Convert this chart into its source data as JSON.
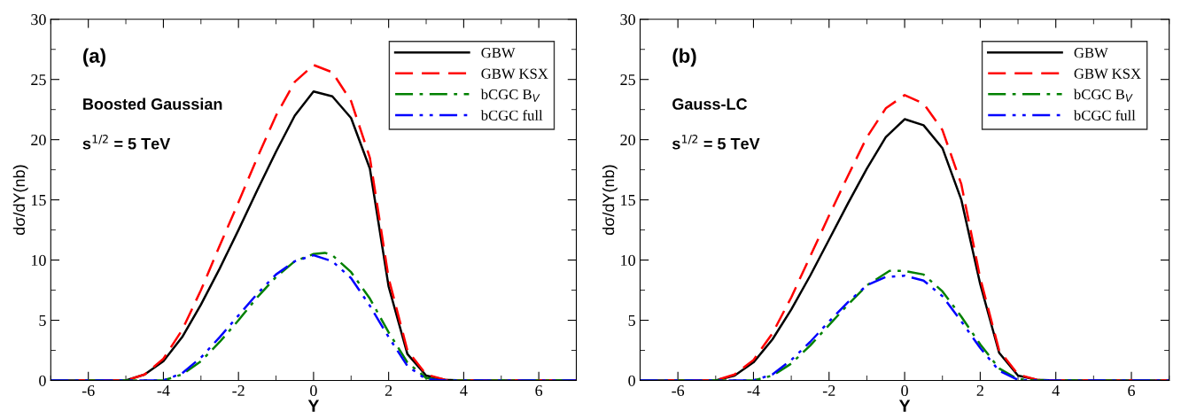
{
  "chart_data": [
    {
      "type": "line",
      "xlabel": "Y",
      "ylabel": "dσ/dY(nb)",
      "xlim": [
        -7,
        7
      ],
      "ylim": [
        0,
        30
      ],
      "xticks": [
        -6,
        -4,
        -2,
        0,
        2,
        4,
        6
      ],
      "yticks": [
        0,
        5,
        10,
        15,
        20,
        25,
        30
      ],
      "grid": false,
      "legend": "top right",
      "marker": "none",
      "annotations": [
        "(a)",
        "Boosted Gaussian",
        "s$^{1/2}$ = 5 TeV"
      ],
      "series": [
        {
          "name": "GBW",
          "color": "#000000",
          "line_style": "solid",
          "x": [
            -7,
            -5,
            -4.5,
            -4,
            -3.5,
            -3,
            -2.5,
            -2,
            -1.5,
            -1,
            -0.5,
            0,
            0.5,
            1,
            1.5,
            2,
            2.5,
            3,
            3.5,
            4,
            7
          ],
          "values": [
            0,
            0,
            0.5,
            1.6,
            3.6,
            6.3,
            9.3,
            12.5,
            15.8,
            19.0,
            22.0,
            24.0,
            23.6,
            21.8,
            17.6,
            7.8,
            2.2,
            0.4,
            0.05,
            0,
            0
          ]
        },
        {
          "name": "GBW KSX",
          "color": "#ff0000",
          "line_style": "dashed",
          "x": [
            -7,
            -5,
            -4.5,
            -4,
            -3.5,
            -3,
            -2.5,
            -2,
            -1.5,
            -1,
            -0.5,
            0,
            0.5,
            1,
            1.5,
            2,
            2.5,
            3,
            3.5,
            4,
            7
          ],
          "values": [
            0,
            0,
            0.5,
            1.8,
            4.2,
            7.5,
            11.2,
            14.8,
            18.5,
            22.0,
            24.8,
            26.2,
            25.6,
            23.2,
            18.5,
            8.5,
            2.5,
            0.5,
            0.05,
            0,
            0
          ]
        },
        {
          "name": "bCGC B$_{V}$",
          "color": "#008000",
          "line_style": "dashdot",
          "x": [
            -7,
            -4,
            -3.5,
            -3,
            -2.5,
            -2,
            -1.5,
            -1,
            -0.5,
            0,
            0.3,
            0.5,
            1,
            1.5,
            2,
            2.5,
            3,
            3.5,
            7
          ],
          "values": [
            0,
            0,
            0.5,
            1.6,
            3.2,
            5.0,
            6.9,
            8.6,
            9.9,
            10.5,
            10.6,
            10.4,
            9.0,
            6.8,
            4.0,
            1.5,
            0.2,
            0,
            0
          ]
        },
        {
          "name": "bCGC full",
          "color": "#0000ff",
          "line_style": "dashdotdot",
          "x": [
            -7,
            -4,
            -3.5,
            -3,
            -2.5,
            -2,
            -1.5,
            -1,
            -0.5,
            0,
            0.5,
            1,
            1.5,
            2,
            2.5,
            3,
            3.5,
            7
          ],
          "values": [
            0,
            0,
            0.6,
            1.9,
            3.6,
            5.4,
            7.2,
            8.8,
            9.9,
            10.4,
            9.9,
            8.5,
            6.2,
            3.6,
            1.2,
            0.1,
            0,
            0
          ]
        }
      ]
    },
    {
      "type": "line",
      "xlabel": "Y",
      "ylabel": "dσ/dY(nb)",
      "xlim": [
        -7,
        7
      ],
      "ylim": [
        0,
        30
      ],
      "xticks": [
        -6,
        -4,
        -2,
        0,
        2,
        4,
        6
      ],
      "yticks": [
        0,
        5,
        10,
        15,
        20,
        25,
        30
      ],
      "grid": false,
      "legend": "top right",
      "marker": "none",
      "annotations": [
        "(b)",
        "Gauss-LC",
        "s$^{1/2}$ = 5 TeV"
      ],
      "series": [
        {
          "name": "GBW",
          "color": "#000000",
          "line_style": "solid",
          "x": [
            -7,
            -5,
            -4.5,
            -4,
            -3.5,
            -3,
            -2.5,
            -2,
            -1.5,
            -1,
            -0.5,
            0,
            0.5,
            1,
            1.5,
            2,
            2.5,
            3,
            3.5,
            4,
            7
          ],
          "values": [
            0,
            0,
            0.4,
            1.5,
            3.4,
            5.9,
            8.7,
            11.7,
            14.7,
            17.6,
            20.2,
            21.7,
            21.2,
            19.3,
            15.0,
            8.0,
            2.3,
            0.4,
            0.05,
            0,
            0
          ]
        },
        {
          "name": "GBW KSX",
          "color": "#ff0000",
          "line_style": "dashed",
          "x": [
            -7,
            -5,
            -4.5,
            -4,
            -3.5,
            -3,
            -2.5,
            -2,
            -1.5,
            -1,
            -0.5,
            0,
            0.5,
            1,
            1.5,
            2,
            2.5,
            3,
            3.5,
            4,
            7
          ],
          "values": [
            0,
            0,
            0.5,
            1.7,
            3.9,
            6.9,
            10.3,
            13.7,
            17.0,
            20.2,
            22.6,
            23.7,
            23.0,
            20.8,
            16.3,
            8.5,
            2.5,
            0.5,
            0.05,
            0,
            0
          ]
        },
        {
          "name": "bCGC B$_{V}$",
          "color": "#008000",
          "line_style": "dashdot",
          "x": [
            -7,
            -4,
            -3.5,
            -3,
            -2.5,
            -2,
            -1.5,
            -1,
            -0.5,
            -0.4,
            0,
            0.5,
            1,
            1.5,
            2,
            2.5,
            3,
            3.5,
            7
          ],
          "values": [
            0,
            0,
            0.4,
            1.4,
            2.9,
            4.6,
            6.3,
            7.9,
            8.9,
            9.1,
            9.1,
            8.8,
            7.4,
            5.3,
            3.0,
            1.0,
            0.1,
            0,
            0
          ]
        },
        {
          "name": "bCGC full",
          "color": "#0000ff",
          "line_style": "dashdotdot",
          "x": [
            -7,
            -4,
            -3.5,
            -3,
            -2.5,
            -2,
            -1.5,
            -1,
            -0.5,
            0,
            0.5,
            1,
            1.5,
            2,
            2.5,
            3,
            3.5,
            7
          ],
          "values": [
            0,
            0,
            0.5,
            1.7,
            3.2,
            4.9,
            6.5,
            7.9,
            8.6,
            8.7,
            8.3,
            7.0,
            4.9,
            2.7,
            0.8,
            0.05,
            0,
            0
          ]
        }
      ]
    }
  ]
}
